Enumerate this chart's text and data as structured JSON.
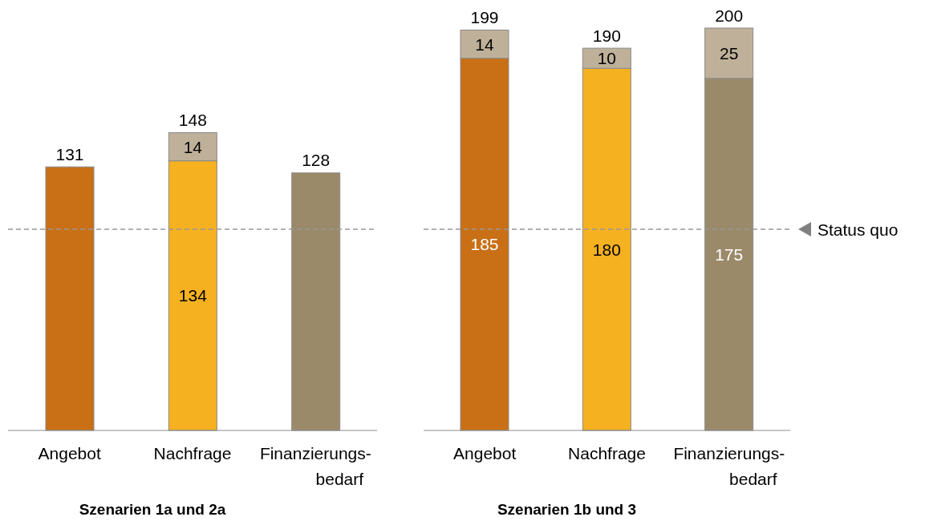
{
  "chart_data": [
    {
      "type": "bar",
      "stacked": true,
      "xlabel": "Szenarien 1a und 2a",
      "categories": [
        "Angebot",
        "Nachfrage",
        "Finanzierungs-\nbedarf"
      ],
      "tick_labels": "x",
      "grid": false,
      "legend": false,
      "series": [
        {
          "colors": [
            "#c96f16",
            "#f5b120",
            "#9b8a6a"
          ],
          "values": [
            131,
            134,
            128
          ],
          "value_labels": [
            null,
            "134",
            null
          ]
        },
        {
          "color": "#bfb199",
          "values": [
            null,
            14,
            null
          ],
          "value_labels": [
            null,
            "14",
            null
          ]
        }
      ],
      "totals": [
        "131",
        "148",
        "128"
      ],
      "ref_lines": [
        {
          "axis": "y",
          "value": 100,
          "color": "#999999",
          "line_style": "dashed"
        }
      ]
    },
    {
      "type": "bar",
      "stacked": true,
      "xlabel": "Szenarien 1b und 3",
      "categories": [
        "Angebot",
        "Nachfrage",
        "Finanzierungs-\nbedarf"
      ],
      "tick_labels": "x",
      "grid": false,
      "legend": false,
      "series": [
        {
          "colors": [
            "#c96f16",
            "#f5b120",
            "#9b8a6a"
          ],
          "values": [
            185,
            180,
            175
          ],
          "value_labels": [
            "185",
            "180",
            "175"
          ]
        },
        {
          "color": "#bfb199",
          "values": [
            14,
            10,
            25
          ],
          "value_labels": [
            "14",
            "10",
            "25"
          ]
        }
      ],
      "totals": [
        "199",
        "190",
        "200"
      ],
      "ref_lines": [
        {
          "axis": "y",
          "value": 100,
          "label": "Status quo",
          "color": "#999999",
          "line_style": "dashed"
        }
      ]
    }
  ]
}
